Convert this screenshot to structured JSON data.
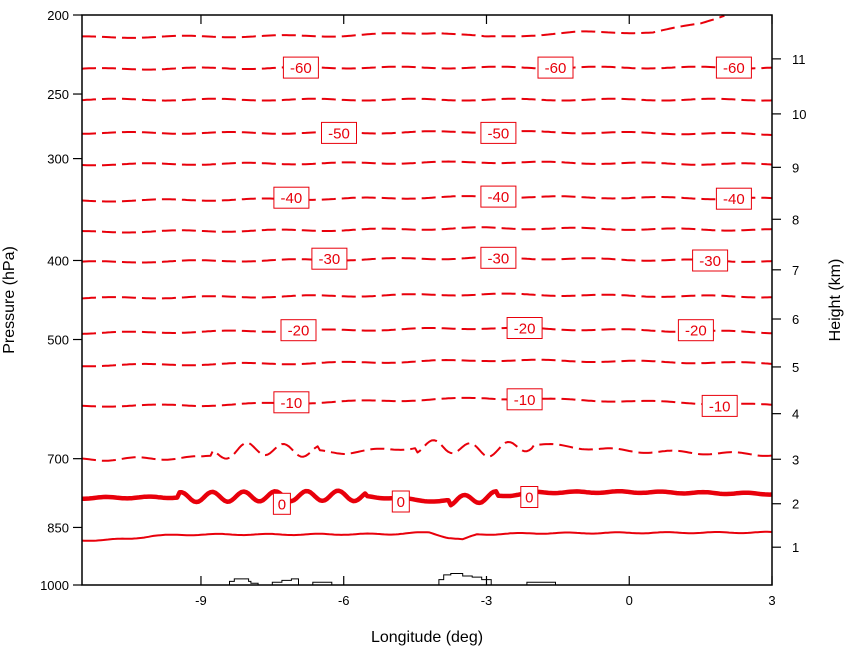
{
  "chart_data": {
    "type": "line",
    "subtype": "contour-cross-section",
    "title": "",
    "xlabel": "Longitude (deg)",
    "ylabel_left": "Pressure (hPa)",
    "ylabel_right": "Height (km)",
    "xlim": [
      -11.5,
      3
    ],
    "ylim_pressure": [
      1000,
      200
    ],
    "y_scale": "log",
    "x_ticks": [
      -9,
      -6,
      -3,
      0,
      3
    ],
    "x_tick_labels": [
      "-9",
      "-6",
      "-3",
      "0",
      "3"
    ],
    "pressure_ticks": [
      1000,
      850,
      700,
      500,
      400,
      300,
      250,
      200
    ],
    "pressure_tick_labels": [
      "1000",
      "850",
      "700",
      "500",
      "400",
      "300",
      "250",
      "200"
    ],
    "height_ticks": [
      1,
      2,
      3,
      4,
      5,
      6,
      7,
      8,
      9,
      10,
      11
    ],
    "height_tick_labels": [
      "1",
      "2",
      "3",
      "4",
      "5",
      "6",
      "7",
      "8",
      "9",
      "10",
      "11"
    ],
    "contour_color": "#e8000b",
    "terrain_color": "#000000",
    "contour_interval": 5,
    "contours": [
      {
        "level": 5,
        "style": "solid",
        "width": "normal",
        "base_pressure": 875,
        "x": [
          -11.5,
          -10.5,
          -10,
          -9,
          -7,
          -5,
          -4.2,
          -3.8,
          -3.5,
          -3.2,
          -2,
          0,
          3
        ],
        "p": [
          882,
          878,
          870,
          867,
          867,
          866,
          862,
          875,
          880,
          867,
          864,
          863,
          862
        ]
      },
      {
        "level": 0,
        "style": "solid",
        "width": "bold",
        "base_pressure": 780,
        "x": [
          -11.5,
          -9,
          -6,
          -5,
          -4,
          -3.5,
          -3,
          -2.5,
          -2,
          0,
          3
        ],
        "p": [
          782,
          780,
          777,
          782,
          790,
          787,
          780,
          776,
          770,
          769,
          773
        ]
      },
      {
        "level": -5,
        "style": "dashed",
        "width": "normal",
        "base_pressure": 690,
        "x": [
          -11.5,
          -9,
          -8,
          -6,
          -4,
          -3,
          -2,
          0,
          3
        ],
        "p": [
          702,
          698,
          680,
          688,
          675,
          685,
          672,
          685,
          692
        ]
      },
      {
        "level": -10,
        "style": "dashed",
        "width": "normal",
        "base_pressure": 600,
        "x": [
          -11.5,
          -9,
          -6,
          -3,
          0,
          3
        ],
        "p": [
          603,
          602,
          596,
          590,
          595,
          602
        ]
      },
      {
        "level": -15,
        "style": "dashed",
        "width": "normal",
        "base_pressure": 535,
        "x": [
          -11.5,
          -6,
          -3,
          0,
          3
        ],
        "p": [
          538,
          534,
          530,
          532,
          535
        ]
      },
      {
        "level": -20,
        "style": "dashed",
        "width": "normal",
        "base_pressure": 490,
        "x": [
          -11.5,
          -6,
          -3,
          0,
          3
        ],
        "p": [
          491,
          487,
          484,
          487,
          490
        ]
      },
      {
        "level": -25,
        "style": "dashed",
        "width": "normal",
        "base_pressure": 443,
        "x": [
          -11.5,
          -6,
          -3,
          0,
          3
        ],
        "p": [
          445,
          442,
          440,
          442,
          443
        ]
      },
      {
        "level": -30,
        "style": "dashed",
        "width": "normal",
        "base_pressure": 400,
        "x": [
          -11.5,
          -6,
          -3,
          0,
          3
        ],
        "p": [
          402,
          399,
          397,
          399,
          401
        ]
      },
      {
        "level": -35,
        "style": "dashed",
        "width": "normal",
        "base_pressure": 368,
        "x": [
          -11.5,
          -6,
          -3,
          0,
          3
        ],
        "p": [
          369,
          367,
          365,
          366,
          367
        ]
      },
      {
        "level": -40,
        "style": "dashed",
        "width": "normal",
        "base_pressure": 337,
        "x": [
          -11.5,
          -6,
          -3,
          0,
          3
        ],
        "p": [
          338,
          336,
          334,
          335,
          336
        ]
      },
      {
        "level": -45,
        "style": "dashed",
        "width": "normal",
        "base_pressure": 305,
        "x": [
          -11.5,
          -6,
          -3,
          0,
          3
        ],
        "p": [
          305,
          304,
          303,
          304,
          305
        ]
      },
      {
        "level": -50,
        "style": "dashed",
        "width": "normal",
        "base_pressure": 279,
        "x": [
          -11.5,
          -6,
          -3,
          0,
          3
        ],
        "p": [
          279,
          279,
          278,
          279,
          280
        ]
      },
      {
        "level": -55,
        "style": "dashed",
        "width": "normal",
        "base_pressure": 254,
        "x": [
          -11.5,
          -6,
          -3,
          0,
          3
        ],
        "p": [
          254,
          254,
          254,
          254,
          254
        ]
      },
      {
        "level": -60,
        "style": "dashed",
        "width": "normal",
        "base_pressure": 232,
        "x": [
          -11.5,
          -6,
          -3,
          0,
          3
        ],
        "p": [
          233,
          232,
          232,
          232,
          232
        ]
      },
      {
        "level": -65,
        "style": "dashed",
        "width": "normal",
        "base_pressure": 212,
        "x": [
          -11.5,
          -6,
          -4,
          -3,
          -1,
          0.5,
          1.5,
          2
        ],
        "p": [
          213,
          212,
          210,
          213,
          210,
          210,
          205,
          200
        ]
      }
    ],
    "contour_labels": [
      {
        "text": "-60",
        "x": -6.9,
        "p": 232
      },
      {
        "text": "-60",
        "x": -1.55,
        "p": 232
      },
      {
        "text": "-60",
        "x": 2.2,
        "p": 232
      },
      {
        "text": "-50",
        "x": -6.1,
        "p": 279
      },
      {
        "text": "-50",
        "x": -2.75,
        "p": 279
      },
      {
        "text": "-40",
        "x": -7.1,
        "p": 335
      },
      {
        "text": "-40",
        "x": -2.75,
        "p": 334
      },
      {
        "text": "-40",
        "x": 2.2,
        "p": 336
      },
      {
        "text": "-30",
        "x": -6.3,
        "p": 398
      },
      {
        "text": "-30",
        "x": -2.75,
        "p": 397
      },
      {
        "text": "-30",
        "x": 1.7,
        "p": 400
      },
      {
        "text": "-20",
        "x": -6.95,
        "p": 487
      },
      {
        "text": "-20",
        "x": -2.2,
        "p": 484
      },
      {
        "text": "-20",
        "x": 1.4,
        "p": 487
      },
      {
        "text": "-10",
        "x": -7.1,
        "p": 597
      },
      {
        "text": "-10",
        "x": -2.2,
        "p": 592
      },
      {
        "text": "-10",
        "x": 1.9,
        "p": 603
      },
      {
        "text": "0",
        "x": -7.3,
        "p": 795
      },
      {
        "text": "0",
        "x": -4.8,
        "p": 790
      },
      {
        "text": "0",
        "x": -2.1,
        "p": 780
      }
    ],
    "terrain": [
      {
        "x": [
          -8.4,
          -8.4,
          -8.3,
          -8.3,
          -8.0,
          -8.0,
          -7.95,
          -7.95,
          -7.8,
          -7.8
        ],
        "p": [
          1000,
          990,
          990,
          983,
          983,
          990,
          990,
          995,
          995,
          1000
        ]
      },
      {
        "x": [
          -7.5,
          -7.5,
          -7.3,
          -7.3,
          -7.1,
          -7.1,
          -6.95,
          -6.95
        ],
        "p": [
          1000,
          992,
          992,
          987,
          987,
          983,
          983,
          1000
        ]
      },
      {
        "x": [
          -6.65,
          -6.65,
          -6.25,
          -6.25
        ],
        "p": [
          1000,
          992,
          992,
          1000
        ]
      },
      {
        "x": [
          -4.0,
          -4.0,
          -3.9,
          -3.9,
          -3.75,
          -3.75,
          -3.5,
          -3.5,
          -3.3,
          -3.3,
          -3.1,
          -3.1,
          -2.9,
          -2.9
        ],
        "p": [
          1000,
          985,
          985,
          972,
          972,
          968,
          968,
          975,
          975,
          978,
          978,
          985,
          985,
          1000
        ]
      },
      {
        "x": [
          -2.15,
          -2.15,
          -1.55,
          -1.55
        ],
        "p": [
          1000,
          992,
          992,
          1000
        ]
      }
    ]
  }
}
